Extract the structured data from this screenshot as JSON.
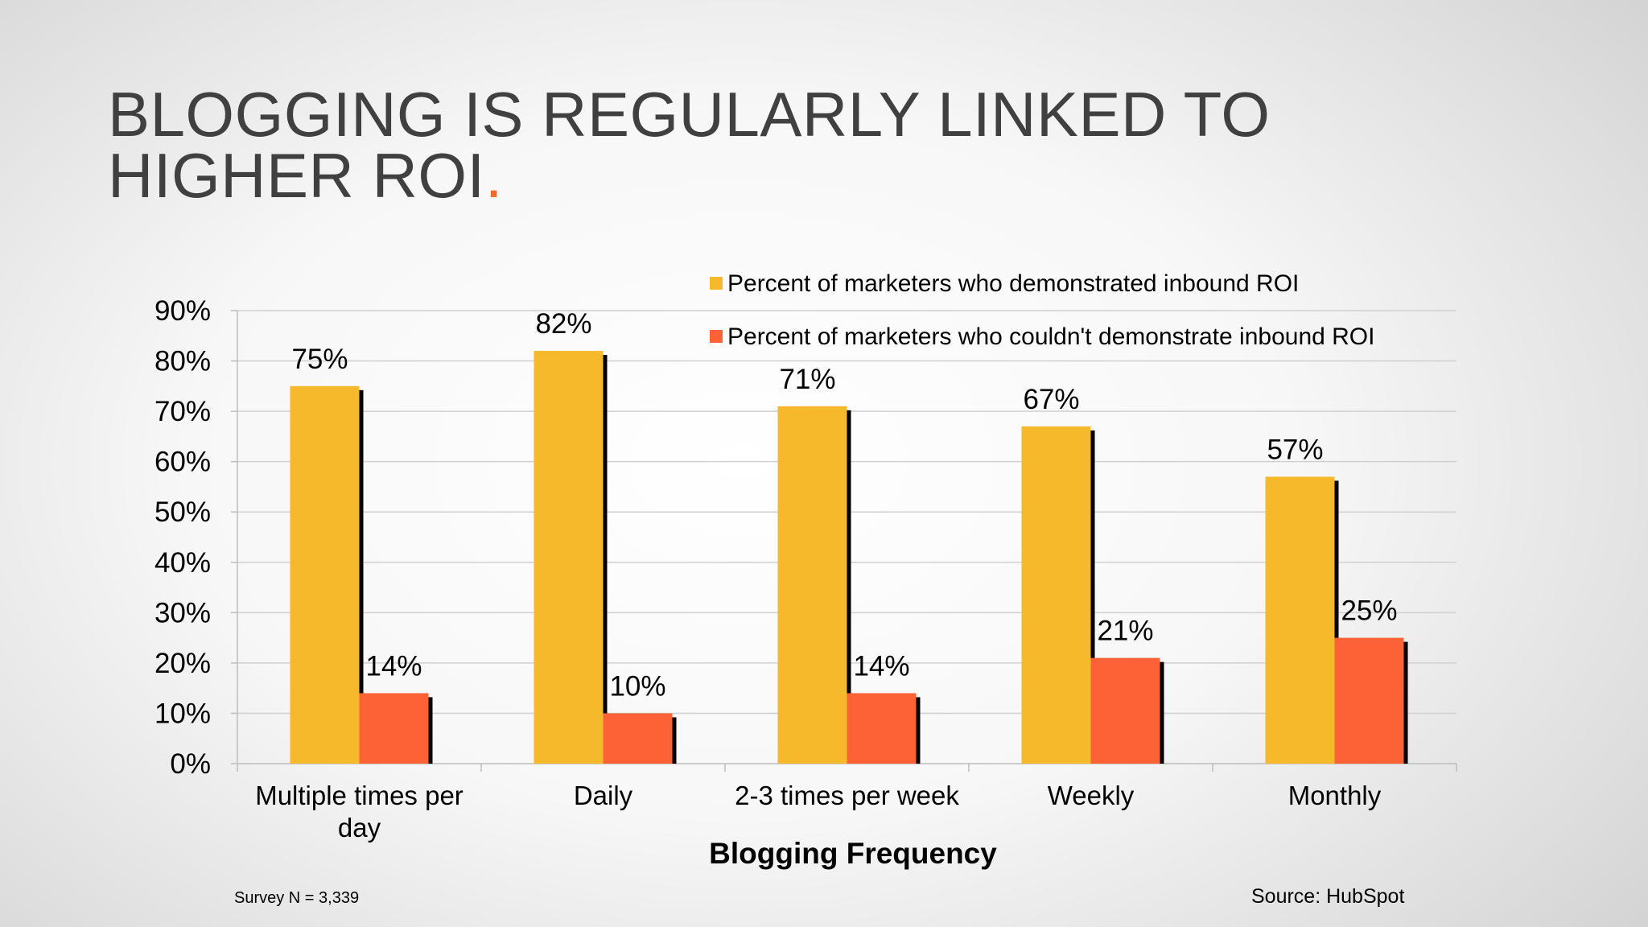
{
  "slide": {
    "title_line_1": "BLOGGING IS REGULARLY LINKED TO",
    "title_line_2": "HIGHER ROI",
    "title_period": ".",
    "survey_note": "Survey N = 3,339",
    "source_note": "Source: HubSpot"
  },
  "colors": {
    "title": "#404040",
    "accent": "#f26b2b",
    "series_1": "#f6b92c",
    "series_2": "#fd6237",
    "shadow": "#000000",
    "grid": "#d0d0d0"
  },
  "chart_data": {
    "type": "bar",
    "title": "",
    "xlabel": "Blogging Frequency",
    "ylabel": "",
    "ylim": [
      0,
      90
    ],
    "yticks": [
      0,
      10,
      20,
      30,
      40,
      50,
      60,
      70,
      80,
      90
    ],
    "ytick_labels": [
      "0%",
      "10%",
      "20%",
      "30%",
      "40%",
      "50%",
      "60%",
      "70%",
      "80%",
      "90%"
    ],
    "grid": true,
    "legend_position": "top-right",
    "categories": [
      "Multiple times per day",
      "Daily",
      "2-3 times per week",
      "Weekly",
      "Monthly"
    ],
    "category_label_lines": [
      [
        "Multiple times per",
        "day"
      ],
      [
        "Daily"
      ],
      [
        "2-3 times per week"
      ],
      [
        "Weekly"
      ],
      [
        "Monthly"
      ]
    ],
    "series": [
      {
        "name": "Percent of marketers who demonstrated inbound ROI",
        "values": [
          75,
          82,
          71,
          67,
          57
        ],
        "labels": [
          "75%",
          "82%",
          "71%",
          "67%",
          "57%"
        ],
        "color": "#f6b92c"
      },
      {
        "name": "Percent of marketers who couldn't demonstrate inbound ROI",
        "values": [
          14,
          10,
          14,
          21,
          25
        ],
        "labels": [
          "14%",
          "10%",
          "14%",
          "21%",
          "25%"
        ],
        "color": "#fd6237"
      }
    ]
  }
}
